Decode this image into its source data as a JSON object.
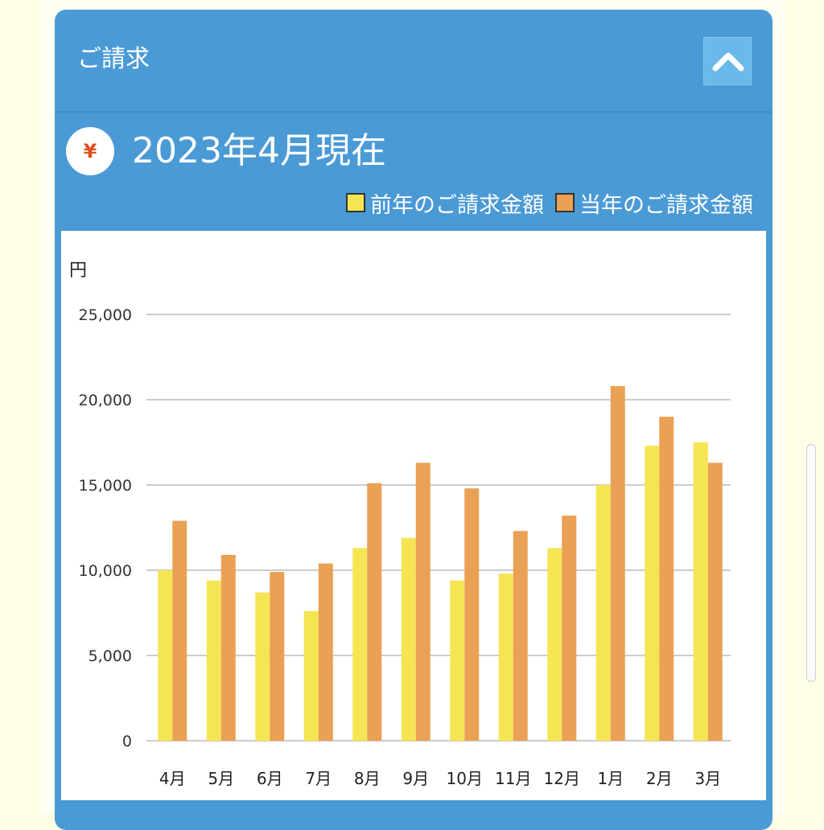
{
  "header": {
    "title": "ご請求",
    "collapse_icon": "chevron-up-icon"
  },
  "summary": {
    "icon": "yen-icon",
    "icon_symbol": "¥",
    "as_of": "2023年4月現在"
  },
  "colors": {
    "card": "#4a9ad5",
    "previous_year": "#f5e553",
    "current_year": "#eaa155",
    "gridline": "#cccccc"
  },
  "chart_data": {
    "type": "bar",
    "ylabel": "円",
    "ylim": [
      0,
      25000
    ],
    "yticks": [
      0,
      5000,
      10000,
      15000,
      20000,
      25000
    ],
    "ytick_labels": [
      "0",
      "5,000",
      "10,000",
      "15,000",
      "20,000",
      "25,000"
    ],
    "grid": true,
    "legend_position": "top-right",
    "categories": [
      "4月",
      "5月",
      "6月",
      "7月",
      "8月",
      "9月",
      "10月",
      "11月",
      "12月",
      "1月",
      "2月",
      "3月"
    ],
    "series": [
      {
        "name": "前年のご請求金額",
        "color": "#f5e553",
        "values": [
          10000,
          9400,
          8700,
          7600,
          11300,
          11900,
          9400,
          9800,
          11300,
          15000,
          17300,
          17500
        ]
      },
      {
        "name": "当年のご請求金額",
        "color": "#eaa155",
        "values": [
          12900,
          10900,
          9900,
          10400,
          15100,
          16300,
          14800,
          12300,
          13200,
          20800,
          19000,
          16300
        ]
      }
    ]
  }
}
